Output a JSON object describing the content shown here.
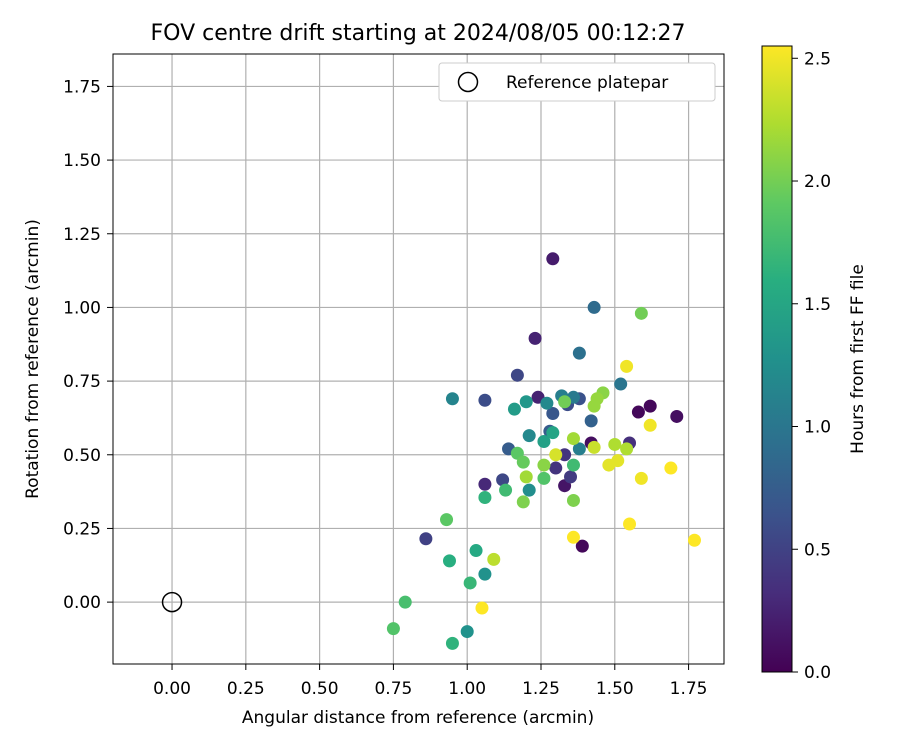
{
  "chart_data": {
    "type": "scatter",
    "title": "FOV centre drift starting at 2024/08/05 00:12:27",
    "xlabel": "Angular distance from reference (arcmin)",
    "ylabel": "Rotation from reference (arcmin)",
    "xlim": [
      -0.2,
      1.87
    ],
    "ylim": [
      -0.21,
      1.86
    ],
    "x_ticks": [
      "0.00",
      "0.25",
      "0.50",
      "0.75",
      "1.00",
      "1.25",
      "1.50",
      "1.75"
    ],
    "x_tick_values": [
      0,
      0.25,
      0.5,
      0.75,
      1.0,
      1.25,
      1.5,
      1.75
    ],
    "y_ticks": [
      "0.00",
      "0.25",
      "0.50",
      "0.75",
      "1.00",
      "1.25",
      "1.50",
      "1.75"
    ],
    "y_tick_values": [
      0,
      0.25,
      0.5,
      0.75,
      1.0,
      1.25,
      1.5,
      1.75
    ],
    "grid": true,
    "colormap": "viridis",
    "colorbar": {
      "label": "Hours from first FF file",
      "range": [
        0.0,
        2.55
      ],
      "ticks": [
        "0.0",
        "0.5",
        "1.0",
        "1.5",
        "2.0",
        "2.5"
      ],
      "tick_values": [
        0.0,
        0.5,
        1.0,
        1.5,
        2.0,
        2.5
      ]
    },
    "legend": {
      "placement": "top-right",
      "entries": [
        "Reference platepar"
      ]
    },
    "reference_point": {
      "x": 0.0,
      "y": 0.0
    },
    "points": [
      {
        "x": 1.39,
        "y": 0.19,
        "c": 0.05
      },
      {
        "x": 1.58,
        "y": 0.645,
        "c": 0.05
      },
      {
        "x": 1.62,
        "y": 0.665,
        "c": 0.05
      },
      {
        "x": 1.71,
        "y": 0.63,
        "c": 0.1
      },
      {
        "x": 1.42,
        "y": 0.54,
        "c": 0.1
      },
      {
        "x": 1.33,
        "y": 0.395,
        "c": 0.15
      },
      {
        "x": 1.29,
        "y": 1.165,
        "c": 0.2
      },
      {
        "x": 1.23,
        "y": 0.895,
        "c": 0.25
      },
      {
        "x": 1.24,
        "y": 0.695,
        "c": 0.25
      },
      {
        "x": 1.06,
        "y": 0.4,
        "c": 0.3
      },
      {
        "x": 1.55,
        "y": 0.54,
        "c": 0.35
      },
      {
        "x": 1.3,
        "y": 0.455,
        "c": 0.4
      },
      {
        "x": 1.33,
        "y": 0.5,
        "c": 0.4
      },
      {
        "x": 1.35,
        "y": 0.425,
        "c": 0.45
      },
      {
        "x": 0.86,
        "y": 0.215,
        "c": 0.5
      },
      {
        "x": 1.17,
        "y": 0.77,
        "c": 0.55
      },
      {
        "x": 1.12,
        "y": 0.415,
        "c": 0.55
      },
      {
        "x": 1.06,
        "y": 0.685,
        "c": 0.6
      },
      {
        "x": 1.34,
        "y": 0.67,
        "c": 0.6
      },
      {
        "x": 1.38,
        "y": 0.69,
        "c": 0.65
      },
      {
        "x": 1.29,
        "y": 0.64,
        "c": 0.7
      },
      {
        "x": 1.28,
        "y": 0.58,
        "c": 0.75
      },
      {
        "x": 1.14,
        "y": 0.52,
        "c": 0.75
      },
      {
        "x": 1.42,
        "y": 0.615,
        "c": 0.8
      },
      {
        "x": 1.43,
        "y": 1.0,
        "c": 0.9
      },
      {
        "x": 1.38,
        "y": 0.845,
        "c": 0.95
      },
      {
        "x": 1.52,
        "y": 0.74,
        "c": 1.0
      },
      {
        "x": 1.36,
        "y": 0.695,
        "c": 1.05
      },
      {
        "x": 1.32,
        "y": 0.7,
        "c": 1.1
      },
      {
        "x": 1.38,
        "y": 0.52,
        "c": 1.1
      },
      {
        "x": 0.95,
        "y": 0.69,
        "c": 1.15
      },
      {
        "x": 1.27,
        "y": 0.675,
        "c": 1.2
      },
      {
        "x": 1.21,
        "y": 0.565,
        "c": 1.2
      },
      {
        "x": 1.21,
        "y": 0.38,
        "c": 1.25
      },
      {
        "x": 1.0,
        "y": -0.1,
        "c": 1.3
      },
      {
        "x": 1.06,
        "y": 0.095,
        "c": 1.3
      },
      {
        "x": 1.2,
        "y": 0.68,
        "c": 1.35
      },
      {
        "x": 1.16,
        "y": 0.655,
        "c": 1.4
      },
      {
        "x": 1.26,
        "y": 0.545,
        "c": 1.45
      },
      {
        "x": 1.29,
        "y": 0.575,
        "c": 1.5
      },
      {
        "x": 1.03,
        "y": 0.175,
        "c": 1.55
      },
      {
        "x": 0.94,
        "y": 0.14,
        "c": 1.6
      },
      {
        "x": 0.95,
        "y": -0.14,
        "c": 1.65
      },
      {
        "x": 1.06,
        "y": 0.355,
        "c": 1.65
      },
      {
        "x": 1.01,
        "y": 0.065,
        "c": 1.7
      },
      {
        "x": 1.13,
        "y": 0.38,
        "c": 1.75
      },
      {
        "x": 1.36,
        "y": 0.465,
        "c": 1.75
      },
      {
        "x": 0.79,
        "y": 0.0,
        "c": 1.8
      },
      {
        "x": 0.75,
        "y": -0.09,
        "c": 1.85
      },
      {
        "x": 1.26,
        "y": 0.42,
        "c": 1.85
      },
      {
        "x": 1.17,
        "y": 0.505,
        "c": 1.9
      },
      {
        "x": 0.93,
        "y": 0.28,
        "c": 1.9
      },
      {
        "x": 1.19,
        "y": 0.475,
        "c": 1.95
      },
      {
        "x": 1.33,
        "y": 0.68,
        "c": 2.0
      },
      {
        "x": 1.59,
        "y": 0.98,
        "c": 2.0
      },
      {
        "x": 1.36,
        "y": 0.345,
        "c": 2.05
      },
      {
        "x": 1.19,
        "y": 0.34,
        "c": 2.05
      },
      {
        "x": 1.26,
        "y": 0.465,
        "c": 2.1
      },
      {
        "x": 1.46,
        "y": 0.71,
        "c": 2.1
      },
      {
        "x": 1.44,
        "y": 0.69,
        "c": 2.15
      },
      {
        "x": 1.43,
        "y": 0.665,
        "c": 2.15
      },
      {
        "x": 1.36,
        "y": 0.555,
        "c": 2.2
      },
      {
        "x": 1.2,
        "y": 0.425,
        "c": 2.2
      },
      {
        "x": 1.5,
        "y": 0.535,
        "c": 2.25
      },
      {
        "x": 1.54,
        "y": 0.52,
        "c": 2.25
      },
      {
        "x": 1.09,
        "y": 0.145,
        "c": 2.3
      },
      {
        "x": 1.43,
        "y": 0.525,
        "c": 2.35
      },
      {
        "x": 1.3,
        "y": 0.5,
        "c": 2.4
      },
      {
        "x": 1.48,
        "y": 0.465,
        "c": 2.45
      },
      {
        "x": 1.51,
        "y": 0.48,
        "c": 2.45
      },
      {
        "x": 1.54,
        "y": 0.8,
        "c": 2.5
      },
      {
        "x": 1.62,
        "y": 0.6,
        "c": 2.5
      },
      {
        "x": 1.59,
        "y": 0.42,
        "c": 2.5
      },
      {
        "x": 1.69,
        "y": 0.455,
        "c": 2.55
      },
      {
        "x": 1.36,
        "y": 0.22,
        "c": 2.55
      },
      {
        "x": 1.55,
        "y": 0.265,
        "c": 2.55
      },
      {
        "x": 1.77,
        "y": 0.21,
        "c": 2.55
      },
      {
        "x": 1.05,
        "y": -0.02,
        "c": 2.55
      }
    ]
  }
}
